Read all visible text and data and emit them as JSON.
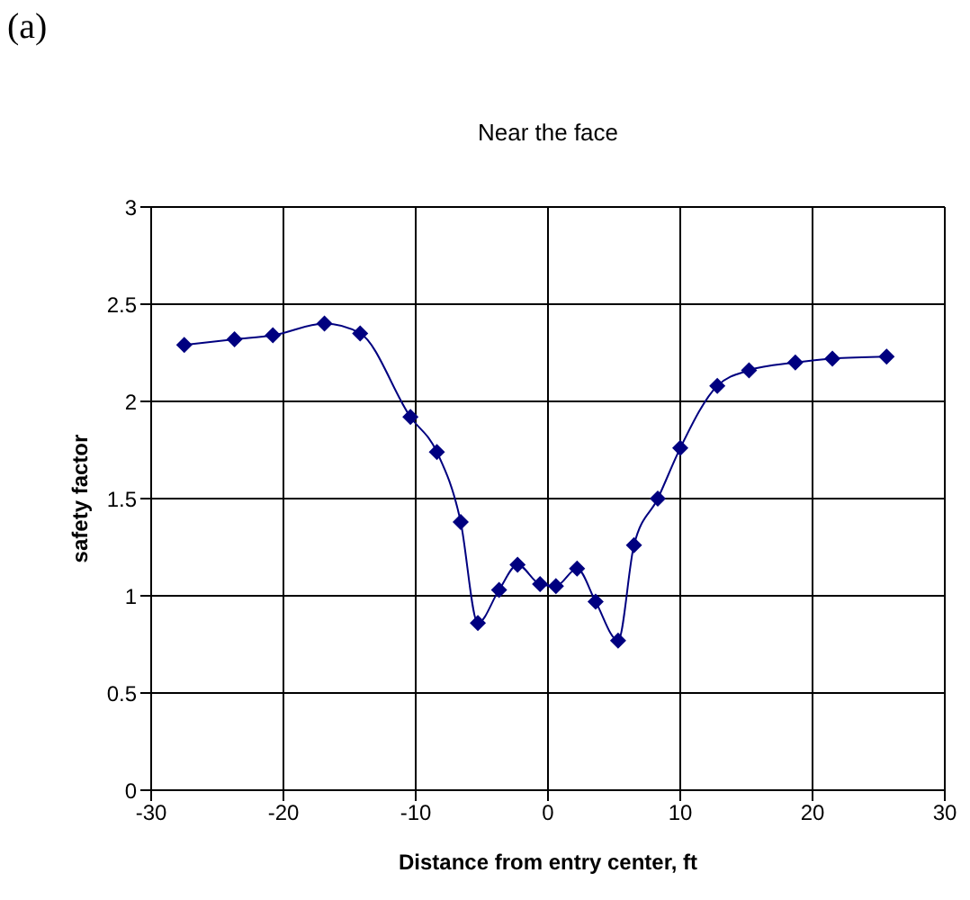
{
  "chart_data": {
    "type": "line",
    "title": "Near the face",
    "xlabel": "Distance from entry center, ft",
    "ylabel": "safety factor",
    "annotations": [
      "(a)"
    ],
    "x": [
      -27.5,
      -23.7,
      -20.8,
      -16.9,
      -14.2,
      -10.4,
      -8.4,
      -6.6,
      -5.3,
      -3.7,
      -2.3,
      -0.6,
      0.6,
      2.2,
      3.6,
      5.3,
      6.5,
      8.3,
      10.0,
      12.8,
      15.2,
      18.7,
      21.5,
      25.6
    ],
    "series": [
      {
        "color": "#000080",
        "values": [
          2.29,
          2.32,
          2.34,
          2.4,
          2.35,
          1.92,
          1.74,
          1.38,
          0.86,
          1.03,
          1.16,
          1.06,
          1.05,
          1.14,
          0.97,
          0.77,
          1.26,
          1.5,
          1.76,
          2.08,
          2.16,
          2.2,
          2.22,
          2.23
        ]
      }
    ],
    "xlim": [
      -30,
      30
    ],
    "xticks": [
      -30,
      -20,
      -10,
      0,
      10,
      20,
      30
    ],
    "ylim": [
      0,
      3
    ],
    "yticks": [
      0,
      0.5,
      1,
      1.5,
      2,
      2.5,
      3
    ],
    "grid": true,
    "marker": "diamond",
    "line_style": "solid",
    "legend": false
  }
}
